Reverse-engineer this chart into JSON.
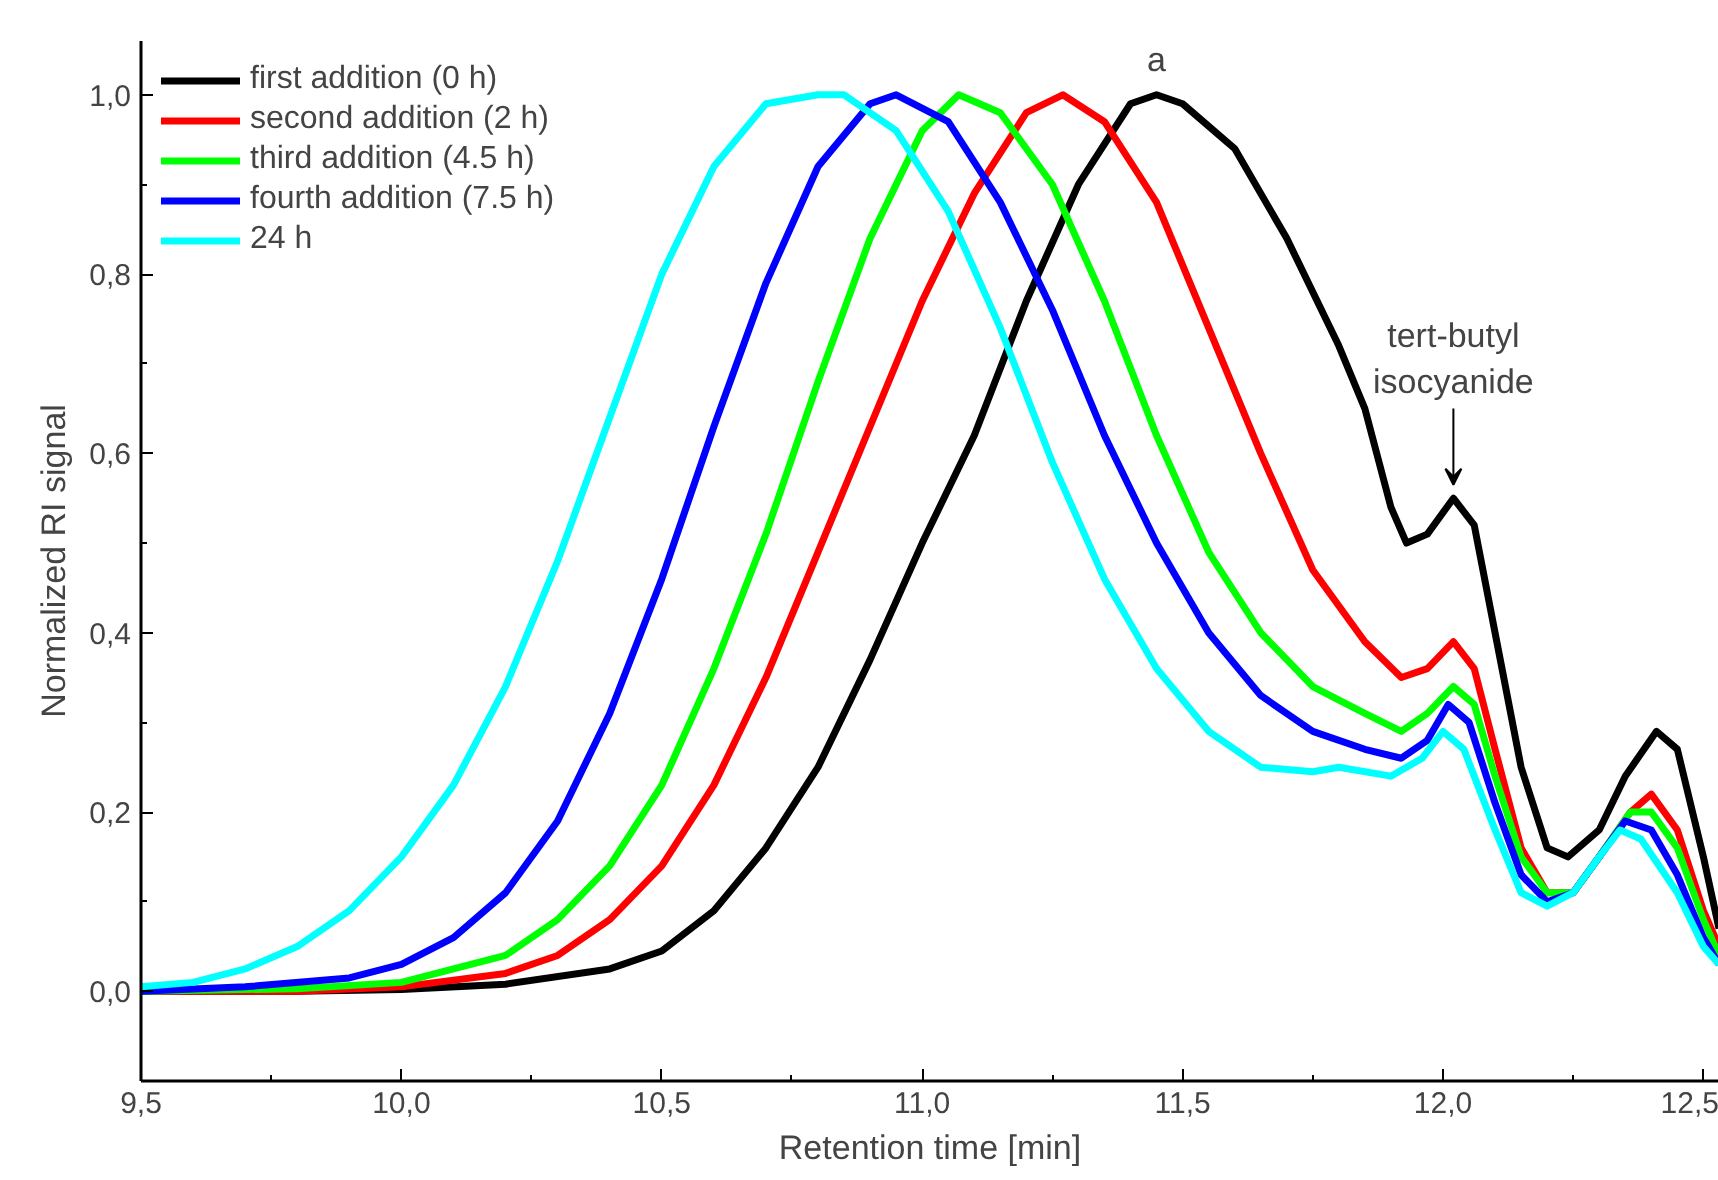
{
  "chart_data": {
    "type": "line",
    "xlabel": "Retention time [min]",
    "ylabel": "Normalized RI signal",
    "xlim": [
      9.5,
      12.53
    ],
    "ylim": [
      -0.1,
      1.06
    ],
    "xticks": [
      {
        "value": 9.5,
        "label": "9,5"
      },
      {
        "value": 9.75,
        "label": null
      },
      {
        "value": 10.0,
        "label": "10,0"
      },
      {
        "value": 10.25,
        "label": null
      },
      {
        "value": 10.5,
        "label": "10,5"
      },
      {
        "value": 10.75,
        "label": null
      },
      {
        "value": 11.0,
        "label": "11,0"
      },
      {
        "value": 11.25,
        "label": null
      },
      {
        "value": 11.5,
        "label": "11,5"
      },
      {
        "value": 11.75,
        "label": null
      },
      {
        "value": 12.0,
        "label": "12,0"
      },
      {
        "value": 12.25,
        "label": null
      },
      {
        "value": 12.5,
        "label": "12,5"
      }
    ],
    "yticks": [
      {
        "value": -0.1,
        "label": null
      },
      {
        "value": 0.0,
        "label": "0,0"
      },
      {
        "value": 0.1,
        "label": null
      },
      {
        "value": 0.2,
        "label": "0,2"
      },
      {
        "value": 0.3,
        "label": null
      },
      {
        "value": 0.4,
        "label": "0,4"
      },
      {
        "value": 0.5,
        "label": null
      },
      {
        "value": 0.6,
        "label": "0,6"
      },
      {
        "value": 0.7,
        "label": null
      },
      {
        "value": 0.8,
        "label": "0,8"
      },
      {
        "value": 0.9,
        "label": null
      },
      {
        "value": 1.0,
        "label": "1,0"
      }
    ],
    "grid": false,
    "legend": "top left",
    "marker": "none",
    "line_style": "solid",
    "annotations": [
      {
        "text": "a",
        "x": 11.45,
        "y": 1.0
      },
      {
        "text": "tert-butyl isocyanide",
        "x": 12.02,
        "y": 0.55
      }
    ],
    "series": [
      {
        "name": "first addition (0 h)",
        "color": "#000000",
        "x": [
          9.5,
          9.8,
          10.0,
          10.2,
          10.4,
          10.5,
          10.6,
          10.7,
          10.8,
          10.9,
          11.0,
          11.1,
          11.2,
          11.3,
          11.4,
          11.45,
          11.5,
          11.6,
          11.7,
          11.8,
          11.85,
          11.9,
          11.93,
          11.97,
          12.02,
          12.06,
          12.1,
          12.15,
          12.2,
          12.24,
          12.3,
          12.35,
          12.41,
          12.45,
          12.5,
          12.53
        ],
        "values": [
          0.0,
          0.0,
          0.002,
          0.008,
          0.025,
          0.045,
          0.09,
          0.16,
          0.25,
          0.37,
          0.5,
          0.62,
          0.77,
          0.9,
          0.99,
          1.0,
          0.99,
          0.94,
          0.84,
          0.72,
          0.65,
          0.54,
          0.5,
          0.51,
          0.55,
          0.52,
          0.4,
          0.25,
          0.16,
          0.15,
          0.18,
          0.24,
          0.29,
          0.27,
          0.15,
          0.07
        ]
      },
      {
        "name": "second addition (2 h)",
        "color": "#ff0000",
        "x": [
          9.5,
          9.8,
          10.0,
          10.2,
          10.3,
          10.4,
          10.5,
          10.6,
          10.7,
          10.8,
          10.9,
          11.0,
          11.1,
          11.2,
          11.27,
          11.35,
          11.45,
          11.55,
          11.65,
          11.75,
          11.85,
          11.92,
          11.97,
          12.02,
          12.06,
          12.1,
          12.15,
          12.2,
          12.25,
          12.3,
          12.36,
          12.4,
          12.45,
          12.5,
          12.53
        ],
        "values": [
          0.0,
          0.0,
          0.005,
          0.02,
          0.04,
          0.08,
          0.14,
          0.23,
          0.35,
          0.49,
          0.63,
          0.77,
          0.89,
          0.98,
          1.0,
          0.97,
          0.88,
          0.74,
          0.6,
          0.47,
          0.39,
          0.35,
          0.36,
          0.39,
          0.36,
          0.27,
          0.16,
          0.11,
          0.11,
          0.15,
          0.2,
          0.22,
          0.18,
          0.09,
          0.05
        ]
      },
      {
        "name": "third addition (4.5 h)",
        "color": "#00ff00",
        "x": [
          9.5,
          9.8,
          10.0,
          10.2,
          10.3,
          10.4,
          10.5,
          10.6,
          10.7,
          10.8,
          10.9,
          11.0,
          11.07,
          11.15,
          11.25,
          11.35,
          11.45,
          11.55,
          11.65,
          11.75,
          11.85,
          11.92,
          11.97,
          12.02,
          12.06,
          12.1,
          12.15,
          12.2,
          12.25,
          12.3,
          12.36,
          12.4,
          12.45,
          12.5,
          12.53
        ],
        "values": [
          0.0,
          0.003,
          0.01,
          0.04,
          0.08,
          0.14,
          0.23,
          0.36,
          0.51,
          0.68,
          0.84,
          0.96,
          1.0,
          0.98,
          0.9,
          0.77,
          0.62,
          0.49,
          0.4,
          0.34,
          0.31,
          0.29,
          0.31,
          0.34,
          0.32,
          0.24,
          0.15,
          0.11,
          0.11,
          0.15,
          0.2,
          0.2,
          0.16,
          0.08,
          0.04
        ]
      },
      {
        "name": "fourth addition (7.5 h)",
        "color": "#0000ff",
        "x": [
          9.5,
          9.7,
          9.9,
          10.0,
          10.1,
          10.2,
          10.3,
          10.4,
          10.5,
          10.6,
          10.7,
          10.8,
          10.9,
          10.95,
          11.05,
          11.15,
          11.25,
          11.35,
          11.45,
          11.55,
          11.65,
          11.75,
          11.85,
          11.92,
          11.97,
          12.01,
          12.05,
          12.1,
          12.15,
          12.2,
          12.25,
          12.3,
          12.35,
          12.4,
          12.45,
          12.5,
          12.53
        ],
        "values": [
          0.0,
          0.005,
          0.015,
          0.03,
          0.06,
          0.11,
          0.19,
          0.31,
          0.46,
          0.63,
          0.79,
          0.92,
          0.99,
          1.0,
          0.97,
          0.88,
          0.76,
          0.62,
          0.5,
          0.4,
          0.33,
          0.29,
          0.27,
          0.26,
          0.28,
          0.32,
          0.3,
          0.21,
          0.13,
          0.1,
          0.11,
          0.15,
          0.19,
          0.18,
          0.13,
          0.06,
          0.03
        ]
      },
      {
        "name": "24 h",
        "color": "#00ffff",
        "x": [
          9.5,
          9.6,
          9.7,
          9.8,
          9.9,
          10.0,
          10.1,
          10.2,
          10.3,
          10.4,
          10.5,
          10.6,
          10.7,
          10.8,
          10.85,
          10.95,
          11.05,
          11.15,
          11.25,
          11.35,
          11.45,
          11.55,
          11.65,
          11.75,
          11.8,
          11.9,
          11.96,
          12.0,
          12.04,
          12.1,
          12.15,
          12.2,
          12.25,
          12.3,
          12.34,
          12.38,
          12.45,
          12.5,
          12.53
        ],
        "values": [
          0.005,
          0.01,
          0.025,
          0.05,
          0.09,
          0.15,
          0.23,
          0.34,
          0.48,
          0.64,
          0.8,
          0.92,
          0.99,
          1.0,
          1.0,
          0.96,
          0.87,
          0.74,
          0.59,
          0.46,
          0.36,
          0.29,
          0.25,
          0.245,
          0.25,
          0.24,
          0.26,
          0.29,
          0.27,
          0.18,
          0.11,
          0.095,
          0.11,
          0.15,
          0.18,
          0.17,
          0.11,
          0.05,
          0.03
        ]
      }
    ]
  }
}
